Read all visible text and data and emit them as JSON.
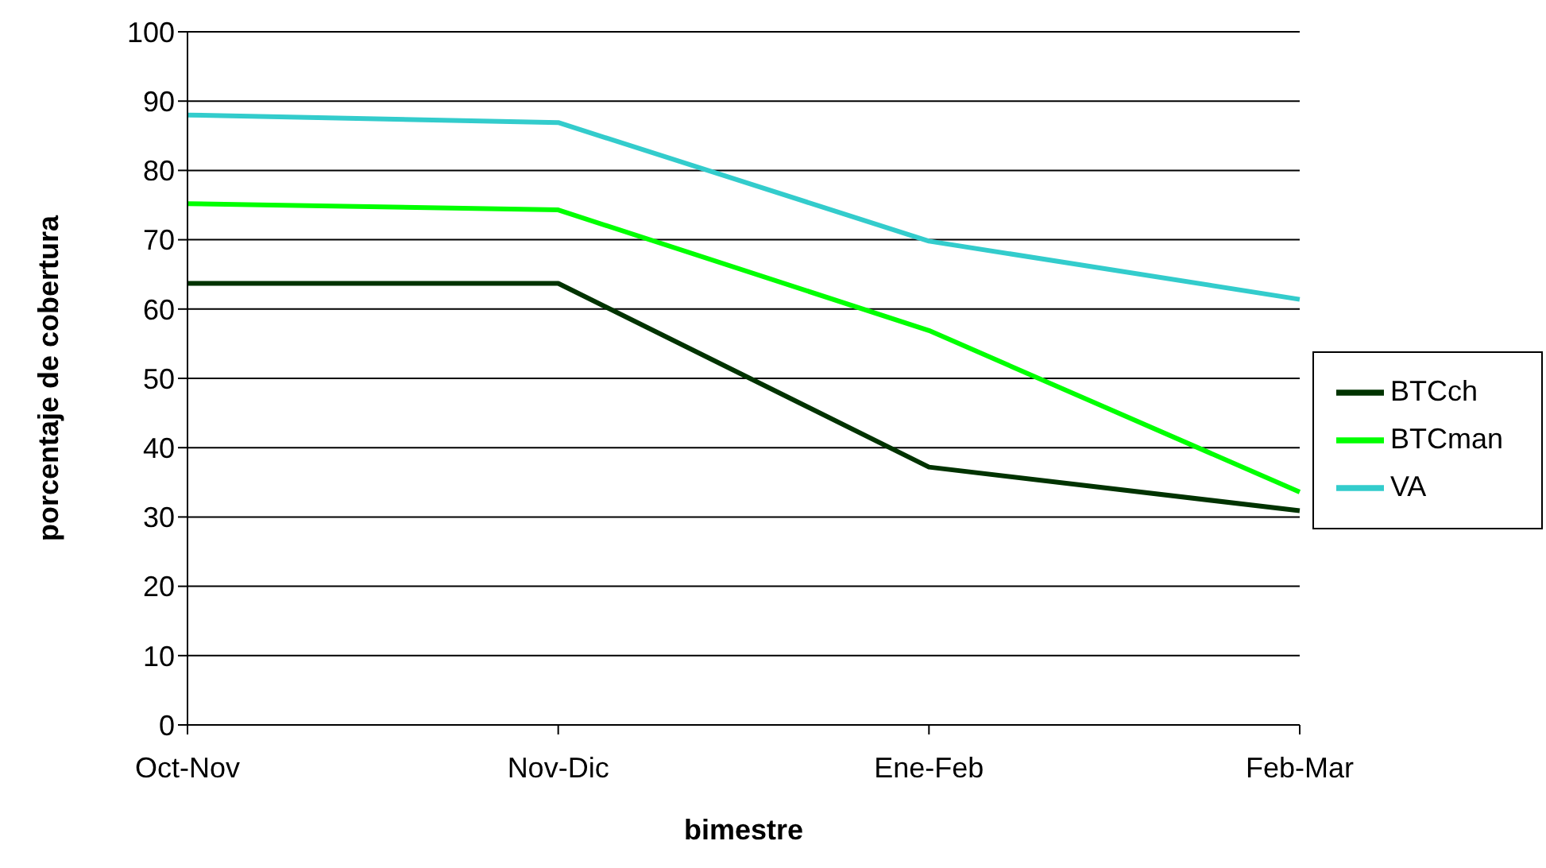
{
  "chart_data": {
    "type": "line",
    "xlabel": "bimestre",
    "ylabel": "porcentaje de cobertura",
    "categories": [
      "Oct-Nov",
      "Nov-Dic",
      "Ene-Feb",
      "Feb-Mar"
    ],
    "series": [
      {
        "name": "BTCch",
        "color": "#003300",
        "values": [
          63.7,
          63.7,
          37.2,
          30.9
        ]
      },
      {
        "name": "VA",
        "color": "#33cccc",
        "values": [
          88,
          86.9,
          69.8,
          61.4
        ]
      },
      {
        "name": "BTCman",
        "color": "#00ff00",
        "values": [
          75.2,
          74.3,
          56.9,
          33.6
        ]
      }
    ],
    "ylim": [
      0,
      100
    ],
    "yticks": [
      0,
      10,
      20,
      30,
      40,
      50,
      60,
      70,
      80,
      90,
      100
    ],
    "grid": "y",
    "legend": "right",
    "marker": "none",
    "line_style": "solid"
  }
}
